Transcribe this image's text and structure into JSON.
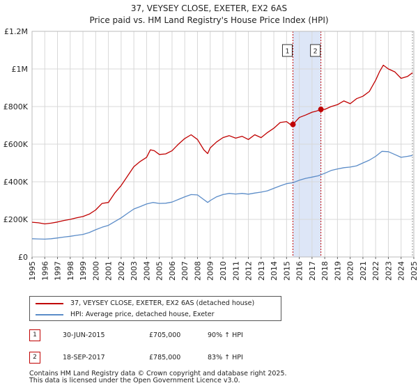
{
  "title": {
    "line1": "37, VEYSEY CLOSE, EXETER, EX2 6AS",
    "line2": "Price paid vs. HM Land Registry's House Price Index (HPI)"
  },
  "colors": {
    "property": "#c00000",
    "hpi": "#5b8cc8",
    "highlight": "#dde6f7",
    "grid": "#d8d8d8"
  },
  "chart_data": {
    "type": "line",
    "title": "37, VEYSEY CLOSE, EXETER, EX2 6AS",
    "subtitle": "Price paid vs. HM Land Registry's House Price Index (HPI)",
    "xlabel": "",
    "ylabel": "",
    "xlim": [
      1995,
      2025
    ],
    "ylim": [
      0,
      1200000
    ],
    "x_ticks": [
      "1995",
      "1996",
      "1997",
      "1998",
      "1999",
      "2000",
      "2001",
      "2002",
      "2003",
      "2004",
      "2005",
      "2006",
      "2007",
      "2008",
      "2009",
      "2010",
      "2011",
      "2012",
      "2013",
      "2014",
      "2015",
      "2016",
      "2017",
      "2018",
      "2019",
      "2020",
      "2021",
      "2022",
      "2023",
      "2024",
      "2025"
    ],
    "y_ticks": [
      {
        "value": 0,
        "label": "£0"
      },
      {
        "value": 200000,
        "label": "£200K"
      },
      {
        "value": 400000,
        "label": "£400K"
      },
      {
        "value": 600000,
        "label": "£600K"
      },
      {
        "value": 800000,
        "label": "£800K"
      },
      {
        "value": 1000000,
        "label": "£1M"
      },
      {
        "value": 1200000,
        "label": "£1.2M"
      }
    ],
    "grid": true,
    "highlight_span": [
      2015.5,
      2017.7
    ],
    "series": [
      {
        "name": "37, VEYSEY CLOSE, EXETER, EX2 6AS (detached house)",
        "color": "#c00000",
        "x": [
          1995.0,
          1995.5,
          1996.0,
          1996.5,
          1997.0,
          1997.5,
          1998.0,
          1998.5,
          1999.0,
          1999.5,
          2000.0,
          2000.5,
          2001.0,
          2001.5,
          2002.0,
          2002.5,
          2003.0,
          2003.5,
          2004.0,
          2004.3,
          2004.6,
          2005.0,
          2005.5,
          2006.0,
          2006.5,
          2007.0,
          2007.5,
          2008.0,
          2008.5,
          2008.8,
          2009.0,
          2009.5,
          2010.0,
          2010.5,
          2011.0,
          2011.5,
          2012.0,
          2012.5,
          2013.0,
          2013.5,
          2014.0,
          2014.5,
          2015.0,
          2015.3,
          2015.5,
          2016.0,
          2016.5,
          2017.0,
          2017.3,
          2017.7,
          2018.0,
          2018.5,
          2019.0,
          2019.5,
          2020.0,
          2020.5,
          2021.0,
          2021.5,
          2022.0,
          2022.3,
          2022.6,
          2023.0,
          2023.5,
          2024.0,
          2024.5,
          2024.9
        ],
        "values": [
          185000,
          182000,
          176000,
          180000,
          186000,
          194000,
          200000,
          208000,
          215000,
          228000,
          250000,
          285000,
          290000,
          340000,
          380000,
          430000,
          480000,
          508000,
          530000,
          570000,
          565000,
          545000,
          548000,
          565000,
          600000,
          630000,
          650000,
          625000,
          570000,
          550000,
          580000,
          612000,
          635000,
          645000,
          632000,
          642000,
          625000,
          650000,
          635000,
          662000,
          685000,
          715000,
          720000,
          705000,
          705000,
          742000,
          755000,
          770000,
          775000,
          785000,
          785000,
          800000,
          810000,
          830000,
          815000,
          842000,
          855000,
          880000,
          940000,
          985000,
          1020000,
          1000000,
          985000,
          950000,
          960000,
          980000
        ]
      },
      {
        "name": "HPI: Average price, detached house, Exeter",
        "color": "#5b8cc8",
        "x": [
          1995.0,
          1995.5,
          1996.0,
          1996.5,
          1997.0,
          1997.5,
          1998.0,
          1998.5,
          1999.0,
          1999.5,
          2000.0,
          2000.5,
          2001.0,
          2001.5,
          2002.0,
          2002.5,
          2003.0,
          2003.5,
          2004.0,
          2004.5,
          2005.0,
          2005.5,
          2006.0,
          2006.5,
          2007.0,
          2007.5,
          2008.0,
          2008.5,
          2008.8,
          2009.0,
          2009.5,
          2010.0,
          2010.5,
          2011.0,
          2011.5,
          2012.0,
          2012.5,
          2013.0,
          2013.5,
          2014.0,
          2014.5,
          2015.0,
          2015.5,
          2016.0,
          2016.5,
          2017.0,
          2017.5,
          2018.0,
          2018.5,
          2019.0,
          2019.5,
          2020.0,
          2020.5,
          2021.0,
          2021.5,
          2022.0,
          2022.5,
          2023.0,
          2023.5,
          2024.0,
          2024.5,
          2024.9
        ],
        "values": [
          97000,
          96000,
          95000,
          97000,
          101000,
          106000,
          110000,
          115000,
          120000,
          130000,
          145000,
          158000,
          168000,
          188000,
          208000,
          232000,
          255000,
          268000,
          282000,
          290000,
          285000,
          286000,
          292000,
          306000,
          320000,
          332000,
          330000,
          305000,
          290000,
          300000,
          320000,
          332000,
          338000,
          335000,
          338000,
          334000,
          340000,
          345000,
          352000,
          365000,
          378000,
          390000,
          395000,
          408000,
          418000,
          425000,
          432000,
          445000,
          460000,
          468000,
          475000,
          478000,
          485000,
          500000,
          515000,
          535000,
          562000,
          560000,
          545000,
          530000,
          535000,
          540000
        ]
      }
    ],
    "transactions": [
      {
        "marker": "1",
        "x": 2015.5,
        "value": 705000
      },
      {
        "marker": "2",
        "x": 2017.7,
        "value": 785000
      }
    ]
  },
  "legend": {
    "items": [
      {
        "label": "37, VEYSEY CLOSE, EXETER, EX2 6AS (detached house)"
      },
      {
        "label": "HPI: Average price, detached house, Exeter"
      }
    ]
  },
  "transactions_table": [
    {
      "marker": "1",
      "date": "30-JUN-2015",
      "price": "£705,000",
      "hpi": "90% ↑ HPI"
    },
    {
      "marker": "2",
      "date": "18-SEP-2017",
      "price": "£785,000",
      "hpi": "83% ↑ HPI"
    }
  ],
  "footer": {
    "line1": "Contains HM Land Registry data © Crown copyright and database right 2025.",
    "line2": "This data is licensed under the Open Government Licence v3.0."
  }
}
